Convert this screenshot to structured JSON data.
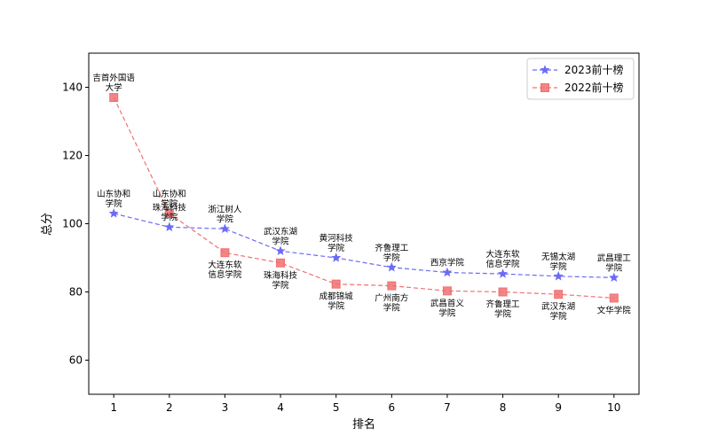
{
  "chart_data": {
    "type": "line",
    "xlabel": "排名",
    "ylabel": "总分",
    "xlim": [
      0.55,
      10.45
    ],
    "ylim": [
      50,
      150
    ],
    "x_ticks": [
      1,
      2,
      3,
      4,
      5,
      6,
      7,
      8,
      9,
      10
    ],
    "y_ticks": [
      60,
      80,
      100,
      120,
      140
    ],
    "grid": false,
    "legend_position": "top-right",
    "series": [
      {
        "name": "2023前十榜",
        "color": "#6b6bf5",
        "marker": "star",
        "label_position": "above",
        "x": [
          1,
          2,
          3,
          4,
          5,
          6,
          7,
          8,
          9,
          10
        ],
        "values": [
          103,
          99,
          98.5,
          92,
          90,
          87.2,
          85.7,
          85.3,
          84.6,
          84.2
        ],
        "labels": [
          [
            "山东协和",
            "学院"
          ],
          [
            "珠海科技",
            "学院"
          ],
          [
            "浙江树人",
            "学院"
          ],
          [
            "武汉东湖",
            "学院"
          ],
          [
            "黄河科技",
            "学院"
          ],
          [
            "齐鲁理工",
            "学院"
          ],
          [
            "西京学院"
          ],
          [
            "大连东软",
            "信息学院"
          ],
          [
            "无锡太湖",
            "学院"
          ],
          [
            "武昌理工",
            "学院"
          ]
        ]
      },
      {
        "name": "2022前十榜",
        "color": "#f07070",
        "marker": "square",
        "label_position": "above_then_below",
        "x": [
          1,
          2,
          3,
          4,
          5,
          6,
          7,
          8,
          9,
          10
        ],
        "values": [
          137,
          103,
          91.5,
          88.5,
          82.3,
          81.8,
          80.3,
          80,
          79.3,
          78.2
        ],
        "labels": [
          [
            "吉首外国语",
            "大学"
          ],
          [
            "山东协和",
            "学院"
          ],
          [
            "大连东软",
            "信息学院"
          ],
          [
            "珠海科技",
            "学院"
          ],
          [
            "成都锦城",
            "学院"
          ],
          [
            "广州南方",
            "学院"
          ],
          [
            "武昌首义",
            "学院"
          ],
          [
            "齐鲁理工",
            "学院"
          ],
          [
            "武汉东湖",
            "学院"
          ],
          [
            "文华学院"
          ]
        ]
      }
    ]
  }
}
